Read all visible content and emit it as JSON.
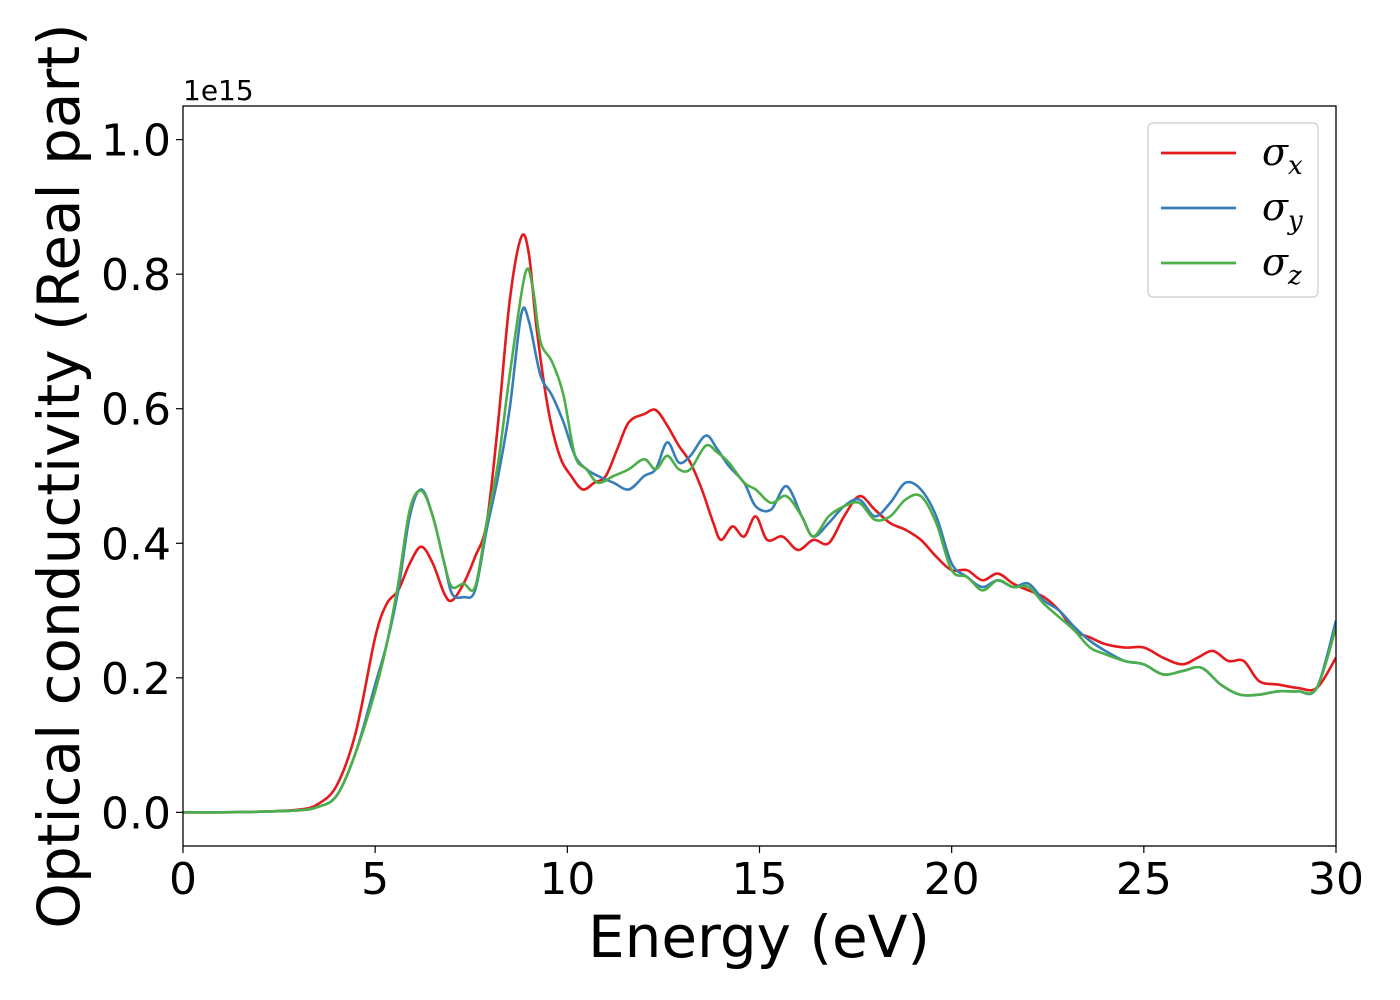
{
  "chart_data": {
    "type": "line",
    "xlabel": "Energy (eV)",
    "ylabel": "Optical conductivity (Real part)",
    "y_offset_label": "1e15",
    "xlim": [
      0,
      30
    ],
    "ylim": [
      -0.05,
      1.05
    ],
    "grid": false,
    "legend_position": "top-right",
    "x_ticks": [
      0,
      5,
      10,
      15,
      20,
      25,
      30
    ],
    "x_tick_labels": [
      "0",
      "5",
      "10",
      "15",
      "20",
      "25",
      "30"
    ],
    "y_ticks": [
      0.0,
      0.2,
      0.4,
      0.6,
      0.8,
      1.0
    ],
    "y_tick_labels": [
      "0.0",
      "0.2",
      "0.4",
      "0.6",
      "0.8",
      "1.0"
    ],
    "series": [
      {
        "name": "σx",
        "symbol": "σ",
        "subscript": "x",
        "color": "#e41a1c",
        "points": [
          [
            0,
            0
          ],
          [
            1,
            0
          ],
          [
            2,
            0.001
          ],
          [
            3,
            0.004
          ],
          [
            3.5,
            0.012
          ],
          [
            4,
            0.04
          ],
          [
            4.5,
            0.12
          ],
          [
            5,
            0.26
          ],
          [
            5.3,
            0.31
          ],
          [
            5.6,
            0.33
          ],
          [
            5.9,
            0.37
          ],
          [
            6.2,
            0.395
          ],
          [
            6.5,
            0.37
          ],
          [
            6.8,
            0.325
          ],
          [
            7.0,
            0.315
          ],
          [
            7.3,
            0.34
          ],
          [
            7.6,
            0.38
          ],
          [
            7.9,
            0.43
          ],
          [
            8.2,
            0.58
          ],
          [
            8.5,
            0.76
          ],
          [
            8.8,
            0.855
          ],
          [
            9.0,
            0.83
          ],
          [
            9.2,
            0.72
          ],
          [
            9.5,
            0.6
          ],
          [
            9.8,
            0.53
          ],
          [
            10.1,
            0.5
          ],
          [
            10.4,
            0.48
          ],
          [
            10.7,
            0.49
          ],
          [
            11.0,
            0.5
          ],
          [
            11.3,
            0.54
          ],
          [
            11.6,
            0.58
          ],
          [
            12.0,
            0.592
          ],
          [
            12.3,
            0.598
          ],
          [
            12.6,
            0.575
          ],
          [
            12.9,
            0.545
          ],
          [
            13.2,
            0.52
          ],
          [
            13.5,
            0.48
          ],
          [
            13.8,
            0.43
          ],
          [
            14.0,
            0.405
          ],
          [
            14.3,
            0.425
          ],
          [
            14.6,
            0.41
          ],
          [
            14.9,
            0.44
          ],
          [
            15.2,
            0.405
          ],
          [
            15.6,
            0.41
          ],
          [
            16.0,
            0.39
          ],
          [
            16.4,
            0.405
          ],
          [
            16.8,
            0.4
          ],
          [
            17.2,
            0.44
          ],
          [
            17.6,
            0.47
          ],
          [
            18.0,
            0.45
          ],
          [
            18.4,
            0.43
          ],
          [
            18.8,
            0.42
          ],
          [
            19.2,
            0.405
          ],
          [
            19.6,
            0.38
          ],
          [
            20.0,
            0.36
          ],
          [
            20.4,
            0.36
          ],
          [
            20.8,
            0.345
          ],
          [
            21.2,
            0.355
          ],
          [
            21.6,
            0.34
          ],
          [
            22.0,
            0.33
          ],
          [
            22.4,
            0.32
          ],
          [
            22.8,
            0.3
          ],
          [
            23.2,
            0.27
          ],
          [
            23.6,
            0.26
          ],
          [
            24.0,
            0.25
          ],
          [
            24.5,
            0.245
          ],
          [
            25.0,
            0.245
          ],
          [
            25.5,
            0.23
          ],
          [
            26.0,
            0.22
          ],
          [
            26.4,
            0.23
          ],
          [
            26.8,
            0.24
          ],
          [
            27.2,
            0.225
          ],
          [
            27.6,
            0.225
          ],
          [
            28.0,
            0.195
          ],
          [
            28.5,
            0.19
          ],
          [
            29.0,
            0.185
          ],
          [
            29.5,
            0.185
          ],
          [
            30.0,
            0.23
          ]
        ]
      },
      {
        "name": "σy",
        "symbol": "σ",
        "subscript": "y",
        "color": "#377eb8",
        "points": [
          [
            0,
            0
          ],
          [
            1,
            0
          ],
          [
            2,
            0.001
          ],
          [
            3,
            0.003
          ],
          [
            3.5,
            0.008
          ],
          [
            4,
            0.025
          ],
          [
            4.5,
            0.09
          ],
          [
            5,
            0.19
          ],
          [
            5.3,
            0.25
          ],
          [
            5.6,
            0.33
          ],
          [
            5.9,
            0.44
          ],
          [
            6.2,
            0.48
          ],
          [
            6.5,
            0.44
          ],
          [
            6.8,
            0.37
          ],
          [
            7.0,
            0.325
          ],
          [
            7.3,
            0.32
          ],
          [
            7.6,
            0.33
          ],
          [
            7.9,
            0.42
          ],
          [
            8.2,
            0.5
          ],
          [
            8.5,
            0.6
          ],
          [
            8.8,
            0.74
          ],
          [
            9.0,
            0.73
          ],
          [
            9.3,
            0.65
          ],
          [
            9.6,
            0.62
          ],
          [
            9.9,
            0.58
          ],
          [
            10.2,
            0.53
          ],
          [
            10.5,
            0.51
          ],
          [
            10.8,
            0.5
          ],
          [
            11.2,
            0.49
          ],
          [
            11.6,
            0.48
          ],
          [
            12.0,
            0.5
          ],
          [
            12.3,
            0.51
          ],
          [
            12.6,
            0.55
          ],
          [
            12.9,
            0.52
          ],
          [
            13.2,
            0.53
          ],
          [
            13.6,
            0.56
          ],
          [
            13.9,
            0.54
          ],
          [
            14.2,
            0.515
          ],
          [
            14.6,
            0.49
          ],
          [
            14.9,
            0.455
          ],
          [
            15.3,
            0.45
          ],
          [
            15.7,
            0.485
          ],
          [
            16.1,
            0.44
          ],
          [
            16.4,
            0.41
          ],
          [
            16.8,
            0.43
          ],
          [
            17.2,
            0.455
          ],
          [
            17.6,
            0.465
          ],
          [
            18.0,
            0.44
          ],
          [
            18.4,
            0.46
          ],
          [
            18.8,
            0.49
          ],
          [
            19.2,
            0.48
          ],
          [
            19.6,
            0.44
          ],
          [
            20.0,
            0.37
          ],
          [
            20.4,
            0.35
          ],
          [
            20.8,
            0.335
          ],
          [
            21.2,
            0.345
          ],
          [
            21.6,
            0.335
          ],
          [
            22.0,
            0.34
          ],
          [
            22.4,
            0.315
          ],
          [
            22.8,
            0.3
          ],
          [
            23.2,
            0.275
          ],
          [
            23.6,
            0.255
          ],
          [
            24.0,
            0.24
          ],
          [
            24.5,
            0.225
          ],
          [
            25.0,
            0.22
          ],
          [
            25.5,
            0.205
          ],
          [
            26.0,
            0.21
          ],
          [
            26.5,
            0.215
          ],
          [
            27.0,
            0.19
          ],
          [
            27.5,
            0.175
          ],
          [
            28.0,
            0.175
          ],
          [
            28.5,
            0.18
          ],
          [
            29.0,
            0.18
          ],
          [
            29.5,
            0.185
          ],
          [
            30.0,
            0.285
          ]
        ]
      },
      {
        "name": "σz",
        "symbol": "σ",
        "subscript": "z",
        "color": "#4daf4a",
        "points": [
          [
            0,
            0
          ],
          [
            1,
            0
          ],
          [
            2,
            0.001
          ],
          [
            3,
            0.003
          ],
          [
            3.5,
            0.008
          ],
          [
            4,
            0.025
          ],
          [
            4.5,
            0.09
          ],
          [
            5,
            0.18
          ],
          [
            5.3,
            0.25
          ],
          [
            5.6,
            0.34
          ],
          [
            5.9,
            0.45
          ],
          [
            6.2,
            0.478
          ],
          [
            6.5,
            0.44
          ],
          [
            6.8,
            0.37
          ],
          [
            7.0,
            0.335
          ],
          [
            7.3,
            0.34
          ],
          [
            7.6,
            0.335
          ],
          [
            7.9,
            0.43
          ],
          [
            8.2,
            0.52
          ],
          [
            8.5,
            0.65
          ],
          [
            8.9,
            0.8
          ],
          [
            9.1,
            0.78
          ],
          [
            9.3,
            0.7
          ],
          [
            9.6,
            0.67
          ],
          [
            9.9,
            0.62
          ],
          [
            10.2,
            0.53
          ],
          [
            10.5,
            0.51
          ],
          [
            10.8,
            0.49
          ],
          [
            11.2,
            0.5
          ],
          [
            11.6,
            0.51
          ],
          [
            12.0,
            0.525
          ],
          [
            12.3,
            0.51
          ],
          [
            12.6,
            0.53
          ],
          [
            12.9,
            0.51
          ],
          [
            13.2,
            0.51
          ],
          [
            13.6,
            0.545
          ],
          [
            13.9,
            0.535
          ],
          [
            14.2,
            0.52
          ],
          [
            14.6,
            0.49
          ],
          [
            14.9,
            0.48
          ],
          [
            15.3,
            0.46
          ],
          [
            15.7,
            0.47
          ],
          [
            16.1,
            0.44
          ],
          [
            16.4,
            0.41
          ],
          [
            16.8,
            0.44
          ],
          [
            17.2,
            0.455
          ],
          [
            17.6,
            0.46
          ],
          [
            18.0,
            0.435
          ],
          [
            18.4,
            0.44
          ],
          [
            18.8,
            0.465
          ],
          [
            19.2,
            0.47
          ],
          [
            19.6,
            0.43
          ],
          [
            20.0,
            0.36
          ],
          [
            20.4,
            0.35
          ],
          [
            20.8,
            0.33
          ],
          [
            21.2,
            0.345
          ],
          [
            21.6,
            0.335
          ],
          [
            22.0,
            0.335
          ],
          [
            22.4,
            0.31
          ],
          [
            22.8,
            0.29
          ],
          [
            23.2,
            0.27
          ],
          [
            23.6,
            0.245
          ],
          [
            24.0,
            0.235
          ],
          [
            24.5,
            0.225
          ],
          [
            25.0,
            0.22
          ],
          [
            25.5,
            0.205
          ],
          [
            26.0,
            0.21
          ],
          [
            26.5,
            0.215
          ],
          [
            27.0,
            0.19
          ],
          [
            27.5,
            0.175
          ],
          [
            28.0,
            0.175
          ],
          [
            28.5,
            0.18
          ],
          [
            29.0,
            0.18
          ],
          [
            29.5,
            0.185
          ],
          [
            30.0,
            0.275
          ]
        ]
      }
    ]
  }
}
